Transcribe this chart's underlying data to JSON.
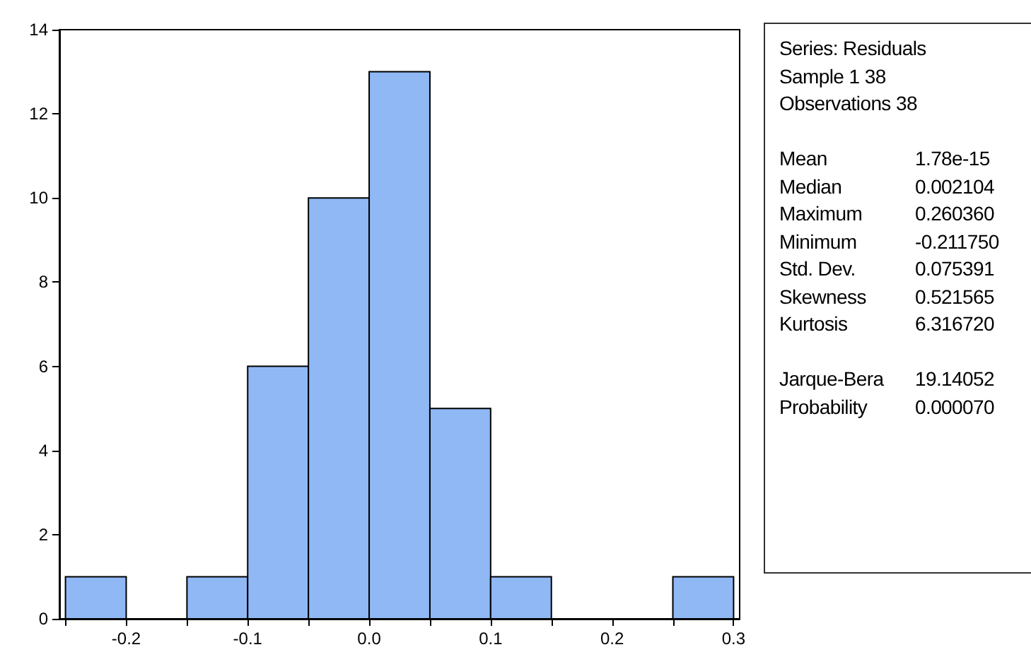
{
  "chart_data": {
    "type": "histogram",
    "color": "#8fb8f5",
    "bins": [
      -0.25,
      -0.2,
      -0.15,
      -0.1,
      -0.05,
      0,
      0.05,
      0.1,
      0.15,
      0.2,
      0.25,
      0.3
    ],
    "values": [
      1,
      0,
      1,
      6,
      10,
      13,
      5,
      1,
      0,
      0,
      1
    ],
    "xlim": [
      -0.255,
      0.305
    ],
    "xticks": [
      {
        "value": -0.25,
        "label": null
      },
      -0.2,
      {
        "value": -0.15,
        "label": null
      },
      -0.1,
      {
        "value": -0.05,
        "label": null
      },
      {
        "value": 0,
        "label": "0.0"
      },
      {
        "value": 0.05,
        "label": null
      },
      0.1,
      {
        "value": 0.15,
        "label": null
      },
      0.2,
      {
        "value": 0.25,
        "label": null
      },
      0.3
    ],
    "ylim": [
      0,
      14
    ],
    "yticks": [
      0,
      2,
      4,
      6,
      8,
      10,
      12,
      14
    ],
    "grid": false,
    "annotations": [
      "Series: Residuals",
      "Sample 1 38",
      "Observations 38",
      "Mean",
      "1.78e-15",
      "Median",
      "0.002104",
      "Maximum",
      "0.260360",
      "Minimum",
      "-0.211750",
      "Std. Dev.",
      "0.075391",
      "Skewness",
      "0.521565",
      "Kurtosis",
      "6.316720",
      "Jarque-Bera",
      "19.14052",
      "Probability",
      "0.000070"
    ]
  }
}
